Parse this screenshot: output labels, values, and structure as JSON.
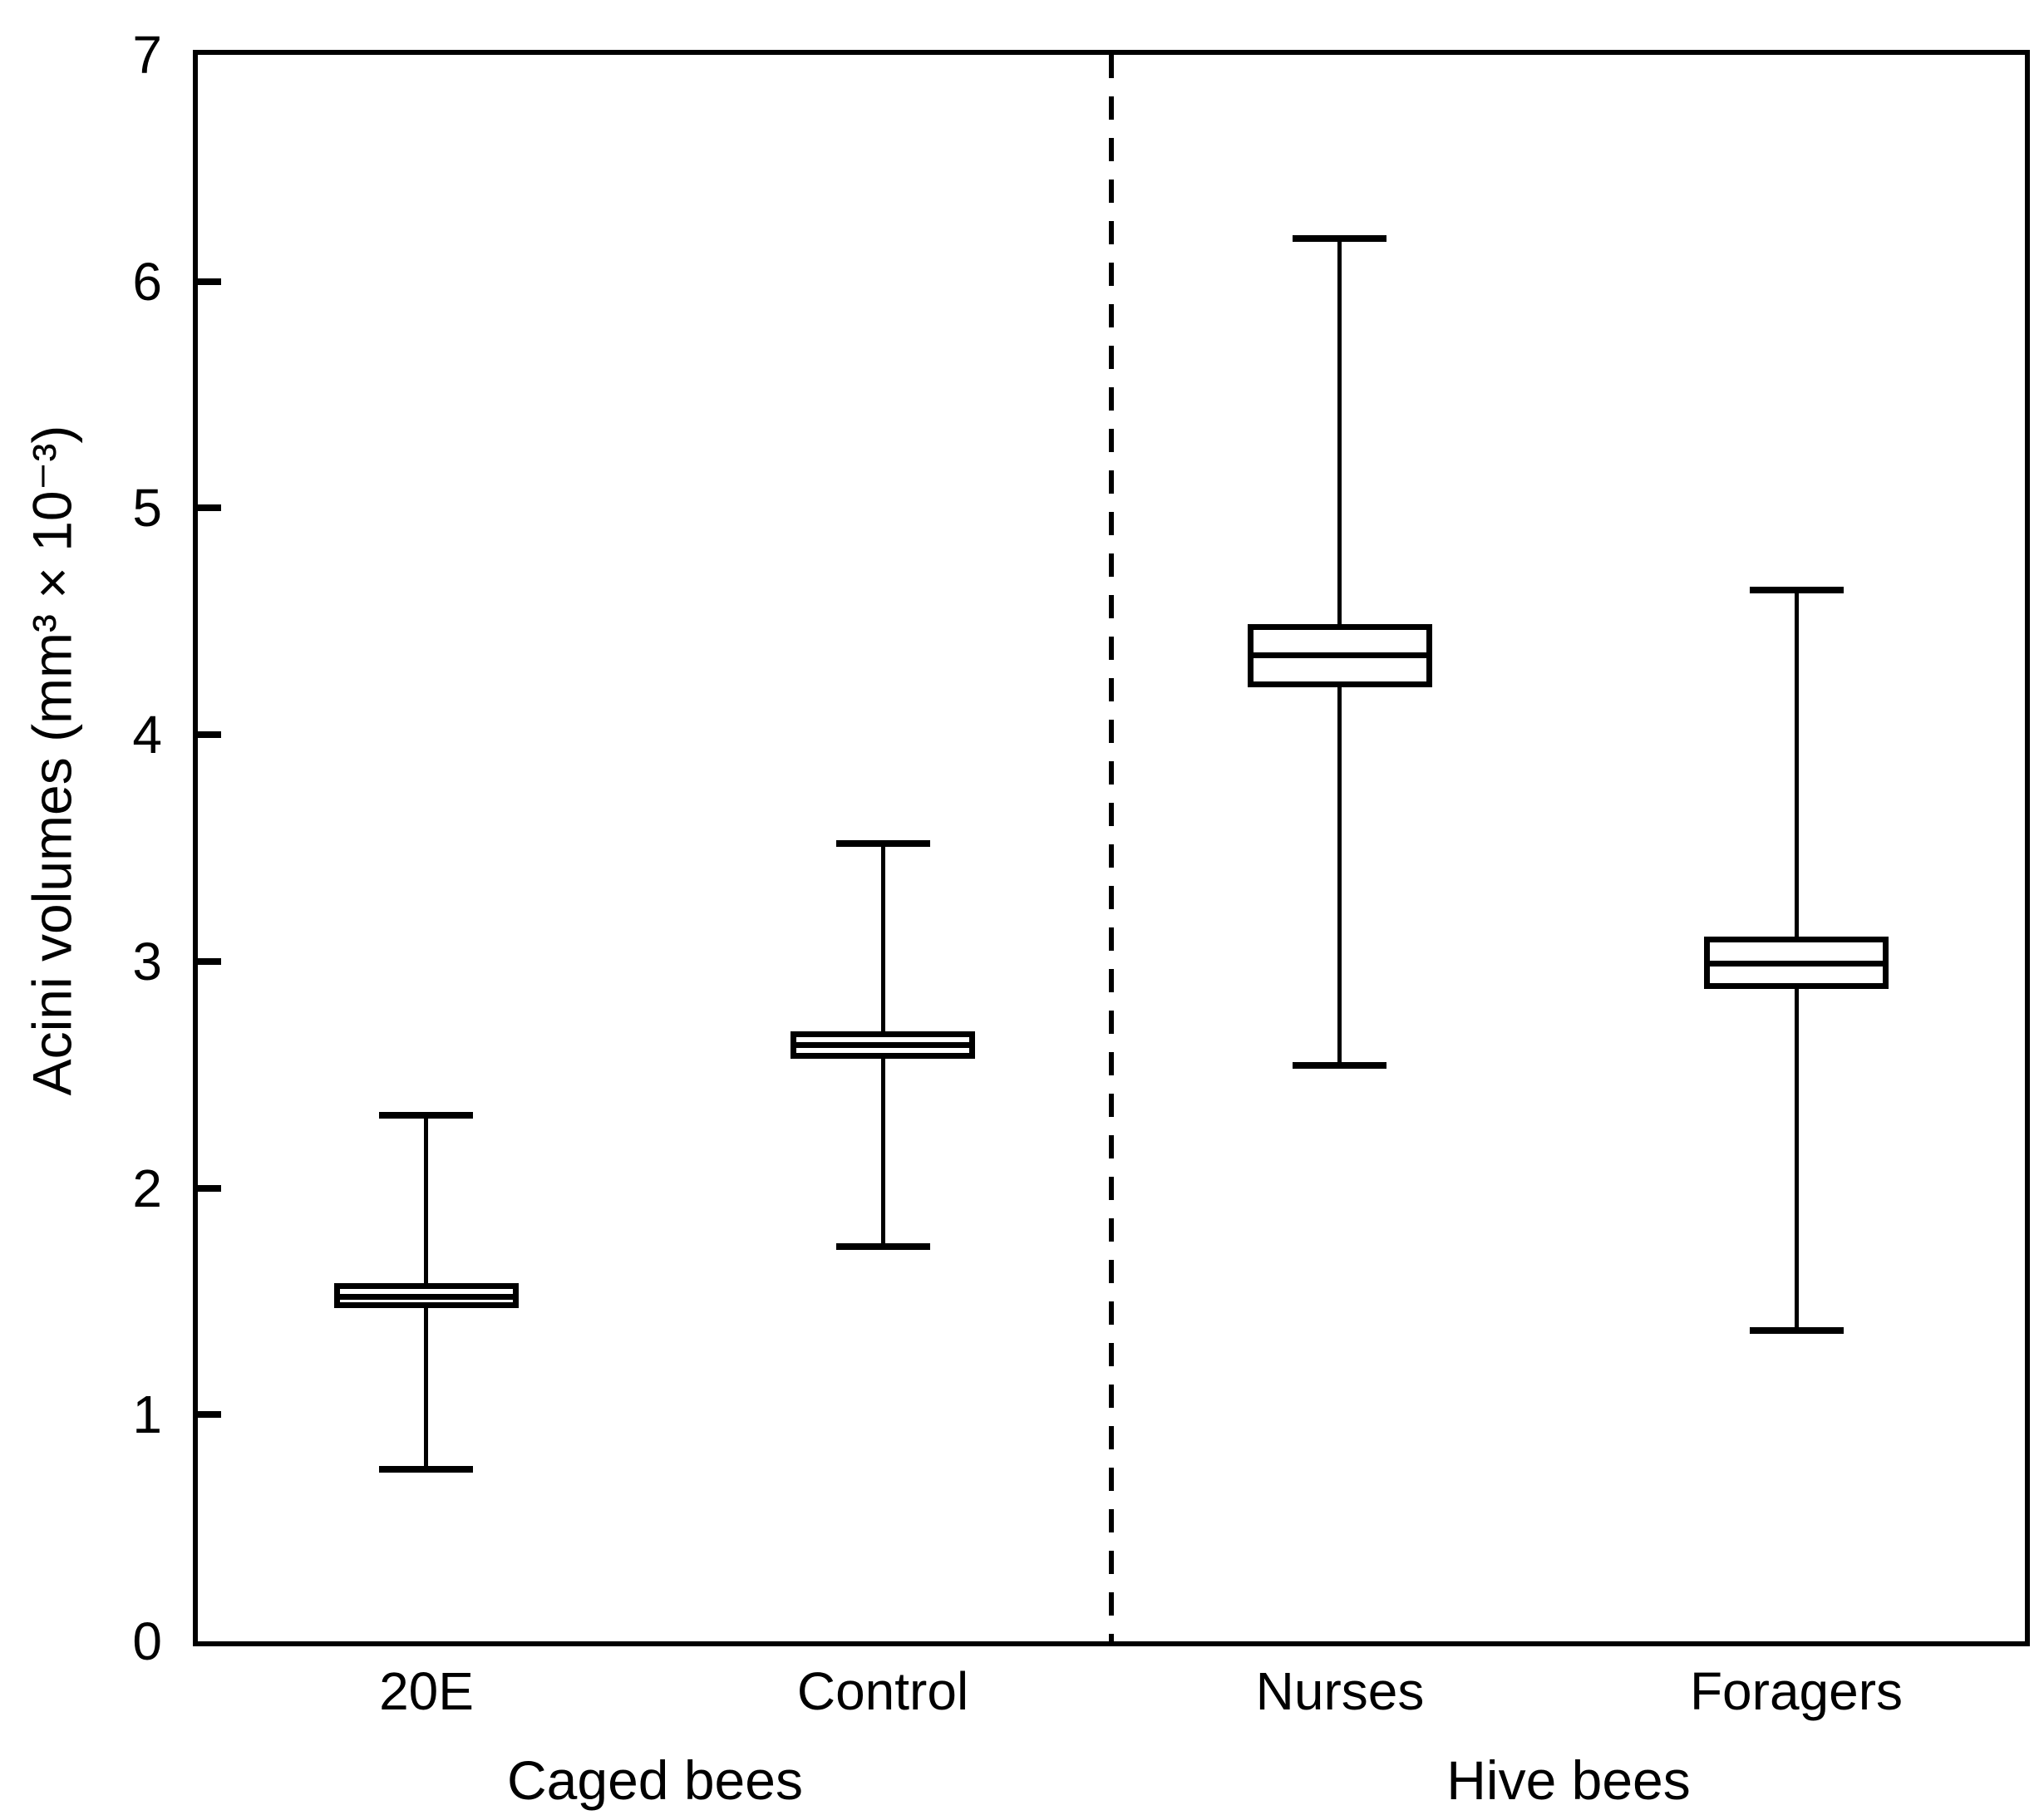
{
  "figure": {
    "background": "#ffffff",
    "foreground": "#000000"
  },
  "chart_data": {
    "type": "boxplot",
    "title": "",
    "ylabel": "Acini volumes (mm³ × 10⁻³)",
    "xlabel": "",
    "ylim": [
      0,
      7
    ],
    "yticks": [
      0,
      1,
      2,
      3,
      4,
      5,
      6,
      7
    ],
    "grid": false,
    "box_fill": "#ffffff",
    "line_color": "#000000",
    "categories": [
      "20E",
      "Control",
      "Nurses",
      "Foragers"
    ],
    "groups": [
      {
        "label": "Caged bees",
        "categories": [
          "20E",
          "Control"
        ]
      },
      {
        "label": "Hive bees",
        "categories": [
          "Nurses",
          "Foragers"
        ]
      }
    ],
    "divider": {
      "style": "dashed",
      "between": [
        "Control",
        "Nurses"
      ]
    },
    "boxes": [
      {
        "category": "20E",
        "whisker_low": 0.76,
        "q1": 1.47,
        "median": 1.52,
        "q3": 1.58,
        "whisker_high": 2.32
      },
      {
        "category": "Control",
        "whisker_low": 1.74,
        "q1": 2.57,
        "median": 2.63,
        "q3": 2.69,
        "whisker_high": 3.52
      },
      {
        "category": "Nurses",
        "whisker_low": 2.54,
        "q1": 4.21,
        "median": 4.35,
        "q3": 4.49,
        "whisker_high": 6.19
      },
      {
        "category": "Foragers",
        "whisker_low": 1.37,
        "q1": 2.88,
        "median": 2.99,
        "q3": 3.11,
        "whisker_high": 4.64
      }
    ]
  }
}
